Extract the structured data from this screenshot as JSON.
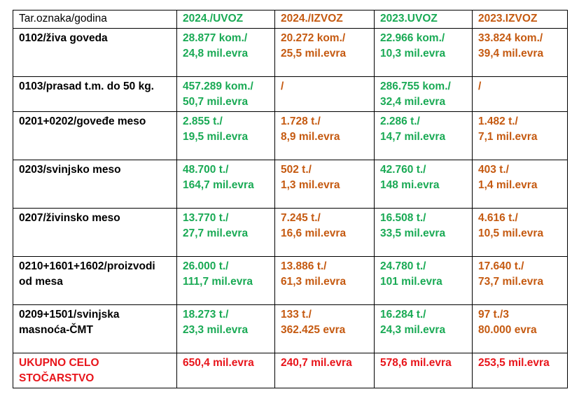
{
  "colors": {
    "import": "#1aaa55",
    "export": "#c55a11",
    "total": "#e8151b",
    "text": "#000000"
  },
  "header": {
    "label": "Tar.oznaka/godina",
    "col1": "2024./UVOZ",
    "col2": "2024./IZVOZ",
    "col3": "2023.UVOZ",
    "col4": "2023.IZVOZ"
  },
  "rows": [
    {
      "label": [
        "0102/živa goveda"
      ],
      "c1": [
        "28.877 kom./",
        "24,8 mil.evra"
      ],
      "c2": [
        "20.272 kom./",
        "25,5 mil.evra"
      ],
      "c3": [
        "22.966 kom./",
        "10,3 mil.evra"
      ],
      "c4": [
        "33.824 kom./",
        "39,4 mil.evra"
      ]
    },
    {
      "label": [
        "0103/prasad t.m. do 50 kg."
      ],
      "c1": [
        "457.289 kom./",
        "50,7 mil.evra"
      ],
      "c2": [
        "/",
        ""
      ],
      "c3": [
        "286.755 kom./",
        "32,4 mil.evra"
      ],
      "c4": [
        "/",
        ""
      ]
    },
    {
      "label": [
        "0201+0202/goveđe meso"
      ],
      "c1": [
        "2.855 t./",
        "19,5 mil.evra"
      ],
      "c2": [
        "1.728 t./",
        "8,9 mil.evra"
      ],
      "c3": [
        "2.286 t./",
        "14,7 mil.evra"
      ],
      "c4": [
        "1.482 t./",
        "7,1 mil.evra"
      ]
    },
    {
      "label": [
        "0203/svinjsko meso"
      ],
      "c1": [
        "48.700 t./",
        "164,7 mil.evra"
      ],
      "c2": [
        "502 t./",
        "1,3 mil.evra"
      ],
      "c3": [
        "42.760 t./",
        "148 mi.evra"
      ],
      "c4": [
        "403 t./",
        "1,4 mil.evra"
      ]
    },
    {
      "label": [
        "0207/živinsko meso"
      ],
      "c1": [
        "13.770 t./",
        "27,7 mil.evra"
      ],
      "c2": [
        "7.245 t./",
        "16,6 mil.evra"
      ],
      "c3": [
        "16.508 t./",
        "33,5 mil.evra"
      ],
      "c4": [
        "4.616 t./",
        "10,5 mil.evra"
      ]
    },
    {
      "label": [
        "0210+1601+1602/proizvodi",
        "od mesa"
      ],
      "c1": [
        "26.000 t./",
        "111,7 mil.evra"
      ],
      "c2": [
        "13.886 t./",
        "61,3 mil.evra"
      ],
      "c3": [
        "24.780 t./",
        "101 mil.evra"
      ],
      "c4": [
        "17.640 t./",
        "73,7 mil.evra"
      ]
    },
    {
      "label": [
        "0209+1501/svinjska",
        "masnoća-ČMT"
      ],
      "c1": [
        "18.273 t./",
        "23,3 mil.evra"
      ],
      "c2": [
        "133 t./",
        "362.425 evra"
      ],
      "c3": [
        "16.284 t./",
        "24,3 mil.evra"
      ],
      "c4": [
        "97 t./3",
        "80.000 evra"
      ]
    }
  ],
  "total": {
    "label": [
      "UKUPNO CELO",
      "STOČARSTVO"
    ],
    "c1": "650,4 mil.evra",
    "c2": "240,7 mil.evra",
    "c3": "578,6 mil.evra",
    "c4": "253,5 mil.evra"
  }
}
